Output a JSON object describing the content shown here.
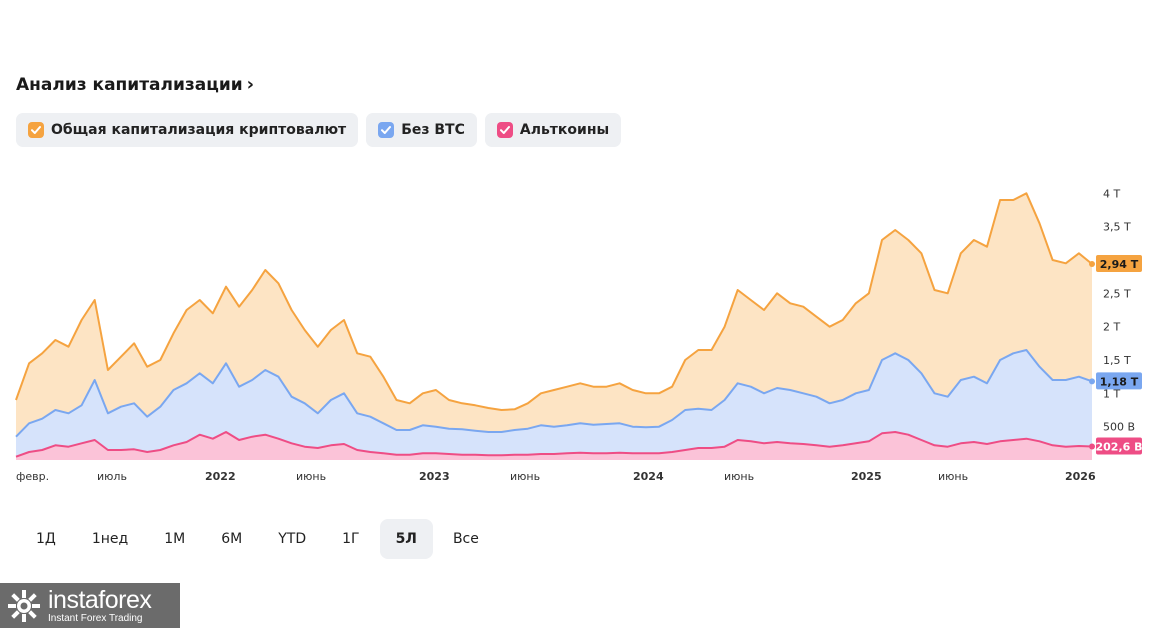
{
  "header": {
    "title": "Анализ капитализации",
    "chevron": "›"
  },
  "legend": [
    {
      "label": "Общая капитализация криптовалют",
      "color": "#f5a340",
      "icon": "check-icon"
    },
    {
      "label": "Без BTC",
      "color": "#7aa7f0",
      "icon": "check-icon"
    },
    {
      "label": "Альткоины",
      "color": "#ee4d85",
      "icon": "check-icon"
    }
  ],
  "range_buttons": [
    "1Д",
    "1нед",
    "1М",
    "6М",
    "YTD",
    "1Г",
    "5Л",
    "Все"
  ],
  "active_range": "5Л",
  "logo": {
    "name": "instaforex",
    "tagline": "Instant Forex Trading"
  },
  "chart_data": {
    "type": "area",
    "x_labels": [
      "февр.",
      "июль",
      "2022",
      "июнь",
      "2023",
      "июнь",
      "2024",
      "июнь",
      "2025",
      "июнь",
      "2026"
    ],
    "x_label_year": [
      false,
      false,
      true,
      false,
      true,
      false,
      true,
      false,
      true,
      false,
      true
    ],
    "y_ticks": [
      "500 B",
      "1 T",
      "1,5 T",
      "2 T",
      "2,5 T",
      "3 T",
      "3,5 T",
      "4 T"
    ],
    "y_tick_values": [
      0.5,
      1.0,
      1.5,
      2.0,
      2.5,
      3.0,
      3.5,
      4.0
    ],
    "y_unit": "trillions",
    "ylim": [
      0,
      4.2
    ],
    "grid": false,
    "last_values": [
      "2,94 T",
      "1,18 T",
      "202,6 B"
    ],
    "series": [
      {
        "name": "Общая капитализация криптовалют",
        "color": "#f5a340",
        "fill": "#fde4c4",
        "values": [
          0.9,
          1.45,
          1.6,
          1.8,
          1.7,
          2.1,
          2.4,
          1.35,
          1.55,
          1.75,
          1.4,
          1.5,
          1.9,
          2.25,
          2.4,
          2.2,
          2.6,
          2.3,
          2.55,
          2.85,
          2.65,
          2.25,
          1.95,
          1.7,
          1.95,
          2.1,
          1.6,
          1.55,
          1.25,
          0.9,
          0.85,
          1.0,
          1.05,
          0.9,
          0.85,
          0.82,
          0.78,
          0.75,
          0.76,
          0.85,
          1.0,
          1.05,
          1.1,
          1.15,
          1.1,
          1.1,
          1.15,
          1.05,
          1.0,
          1.0,
          1.1,
          1.5,
          1.65,
          1.65,
          2.0,
          2.55,
          2.4,
          2.25,
          2.5,
          2.35,
          2.3,
          2.15,
          2.0,
          2.1,
          2.35,
          2.5,
          3.3,
          3.45,
          3.3,
          3.1,
          2.55,
          2.5,
          3.1,
          3.3,
          3.2,
          3.9,
          3.9,
          4.0,
          3.55,
          3.0,
          2.95,
          3.1,
          2.94
        ]
      },
      {
        "name": "Без BTC",
        "color": "#7aa7f0",
        "fill": "#d6e3fb",
        "values": [
          0.35,
          0.55,
          0.62,
          0.75,
          0.7,
          0.82,
          1.2,
          0.7,
          0.8,
          0.85,
          0.65,
          0.8,
          1.05,
          1.15,
          1.3,
          1.15,
          1.45,
          1.1,
          1.2,
          1.35,
          1.25,
          0.95,
          0.85,
          0.7,
          0.9,
          1.0,
          0.7,
          0.65,
          0.55,
          0.45,
          0.45,
          0.52,
          0.5,
          0.47,
          0.46,
          0.44,
          0.42,
          0.42,
          0.45,
          0.47,
          0.52,
          0.5,
          0.52,
          0.55,
          0.53,
          0.54,
          0.55,
          0.5,
          0.49,
          0.5,
          0.6,
          0.75,
          0.77,
          0.75,
          0.9,
          1.15,
          1.1,
          1.0,
          1.08,
          1.05,
          1.0,
          0.95,
          0.85,
          0.9,
          1.0,
          1.05,
          1.5,
          1.6,
          1.5,
          1.3,
          1.0,
          0.95,
          1.2,
          1.25,
          1.15,
          1.5,
          1.6,
          1.65,
          1.4,
          1.2,
          1.2,
          1.25,
          1.18
        ]
      },
      {
        "name": "Альткоины",
        "color": "#ee4d85",
        "fill": "#fbc3d8",
        "values": [
          0.05,
          0.12,
          0.15,
          0.22,
          0.2,
          0.25,
          0.3,
          0.15,
          0.15,
          0.16,
          0.12,
          0.15,
          0.22,
          0.27,
          0.38,
          0.32,
          0.42,
          0.3,
          0.35,
          0.38,
          0.32,
          0.25,
          0.2,
          0.18,
          0.22,
          0.24,
          0.15,
          0.12,
          0.1,
          0.08,
          0.08,
          0.1,
          0.1,
          0.09,
          0.08,
          0.08,
          0.07,
          0.07,
          0.08,
          0.08,
          0.09,
          0.09,
          0.1,
          0.11,
          0.1,
          0.1,
          0.11,
          0.1,
          0.1,
          0.1,
          0.12,
          0.15,
          0.18,
          0.18,
          0.2,
          0.3,
          0.28,
          0.25,
          0.27,
          0.25,
          0.24,
          0.22,
          0.2,
          0.22,
          0.25,
          0.28,
          0.4,
          0.42,
          0.38,
          0.3,
          0.22,
          0.2,
          0.25,
          0.27,
          0.24,
          0.28,
          0.3,
          0.32,
          0.28,
          0.22,
          0.2,
          0.21,
          0.2026
        ]
      }
    ]
  }
}
